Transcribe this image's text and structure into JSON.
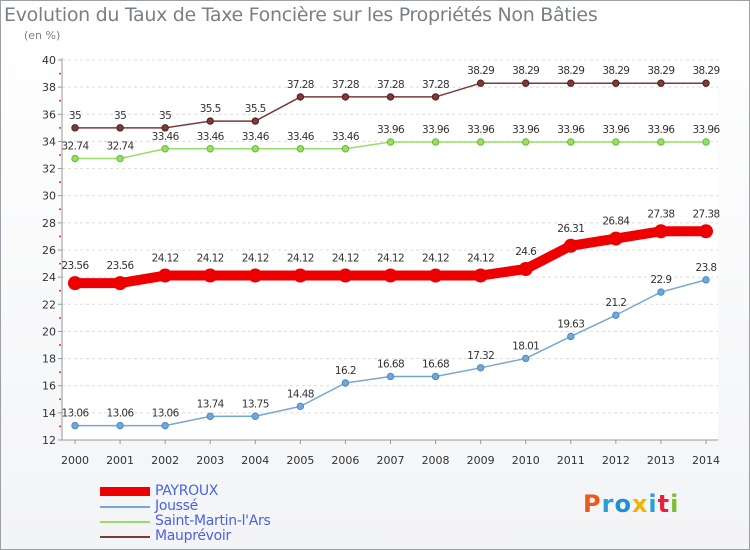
{
  "title": "Evolution du Taux de Taxe Foncière sur les Propriétés Non Bâties",
  "unit_label": "(en %)",
  "logo": {
    "text": "Proxiti",
    "colors": [
      "#e85b1a",
      "#2b9fd8",
      "#1f8fd6",
      "#f1b400",
      "#2b9fd8",
      "#e6233c",
      "#7cbf2e"
    ]
  },
  "chart_data": {
    "type": "line",
    "title": "Evolution du Taux de Taxe Foncière sur les Propriétés Non Bâties",
    "ylabel": "(en %)",
    "xlabel": "",
    "x": [
      "2000",
      "2001",
      "2002",
      "2003",
      "2004",
      "2005",
      "2006",
      "2007",
      "2008",
      "2009",
      "2010",
      "2011",
      "2012",
      "2013",
      "2014"
    ],
    "ylim": [
      12,
      40
    ],
    "yticks": [
      "12",
      "14",
      "16",
      "18",
      "20",
      "22",
      "24",
      "26",
      "28",
      "30",
      "32",
      "34",
      "36",
      "38",
      "40"
    ],
    "grid": true,
    "legend_position": "bottom-left",
    "series": [
      {
        "name": "PAYROUX",
        "color": "#ee0000",
        "thick": true,
        "values": [
          23.56,
          23.56,
          24.12,
          24.12,
          24.12,
          24.12,
          24.12,
          24.12,
          24.12,
          24.12,
          24.6,
          26.31,
          26.84,
          27.38,
          27.38
        ],
        "labels": [
          "23.56",
          "23.56",
          "24.12",
          "24.12",
          "24.12",
          "24.12",
          "24.12",
          "24.12",
          "24.12",
          "24.12",
          "24.6",
          "26.31",
          "26.84",
          "27.38",
          "27.38"
        ]
      },
      {
        "name": "Joussé",
        "color": "#77a7d1",
        "marker": "#3f8bd0",
        "thick": false,
        "values": [
          13.06,
          13.06,
          13.06,
          13.74,
          13.75,
          14.48,
          16.2,
          16.68,
          16.68,
          17.32,
          18.01,
          19.63,
          21.2,
          22.9,
          23.8
        ],
        "labels": [
          "13.06",
          "13.06",
          "13.06",
          "13.74",
          "13.75",
          "14.48",
          "16.2",
          "16.68",
          "16.68",
          "17.32",
          "18.01",
          "19.63",
          "21.2",
          "22.9",
          "23.8"
        ]
      },
      {
        "name": "Saint-Martin-l'Ars",
        "color": "#99dd66",
        "marker": "#66bb33",
        "thick": false,
        "values": [
          32.74,
          32.74,
          33.46,
          33.46,
          33.46,
          33.46,
          33.46,
          33.96,
          33.96,
          33.96,
          33.96,
          33.96,
          33.96,
          33.96,
          33.96
        ],
        "labels": [
          "32.74",
          "32.74",
          "33.46",
          "33.46",
          "33.46",
          "33.46",
          "33.46",
          "33.96",
          "33.96",
          "33.96",
          "33.96",
          "33.96",
          "33.96",
          "33.96",
          "33.96"
        ]
      },
      {
        "name": "Mauprévoir",
        "color": "#7a3b3b",
        "marker": "#5a1a1a",
        "thick": false,
        "values": [
          35,
          35,
          35,
          35.5,
          35.5,
          37.28,
          37.28,
          37.28,
          37.28,
          38.29,
          38.29,
          38.29,
          38.29,
          38.29,
          38.29
        ],
        "labels": [
          "35",
          "35",
          "35",
          "35.5",
          "35.5",
          "37.28",
          "37.28",
          "37.28",
          "37.28",
          "38.29",
          "38.29",
          "38.29",
          "38.29",
          "38.29",
          "38.29"
        ]
      }
    ]
  }
}
